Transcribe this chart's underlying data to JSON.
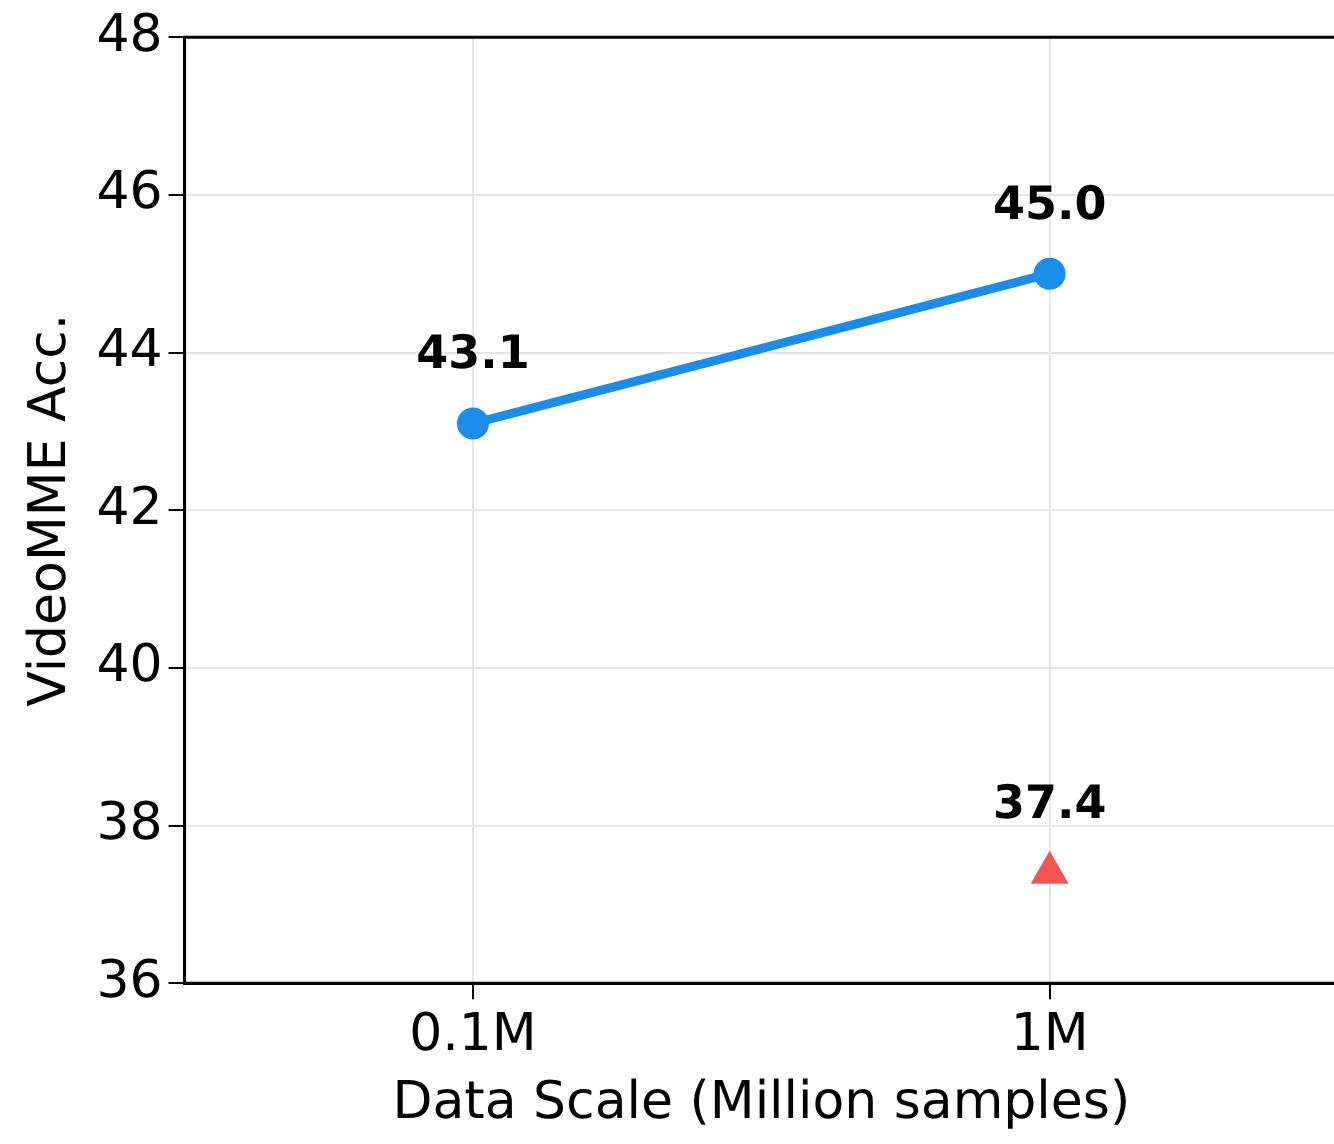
{
  "chart_data": {
    "type": "line",
    "xlabel": "Data Scale (Million samples)",
    "ylabel": "VideoMME Acc.",
    "categories": [
      "0.1M",
      "1M"
    ],
    "series": [
      {
        "type": "line",
        "color": "#1a8ceb",
        "marker": "circle",
        "values": [
          43.1,
          45.0
        ],
        "value_labels": [
          "43.1",
          "45.0"
        ]
      },
      {
        "type": "scatter",
        "color": "#f05454",
        "marker": "triangle",
        "x": [
          "1M"
        ],
        "values": [
          37.4
        ],
        "value_labels": [
          "37.4"
        ]
      }
    ],
    "ylim": [
      36,
      48
    ],
    "yticks": [
      36,
      38,
      40,
      42,
      44,
      46,
      48
    ],
    "grid": true,
    "legend": false
  }
}
